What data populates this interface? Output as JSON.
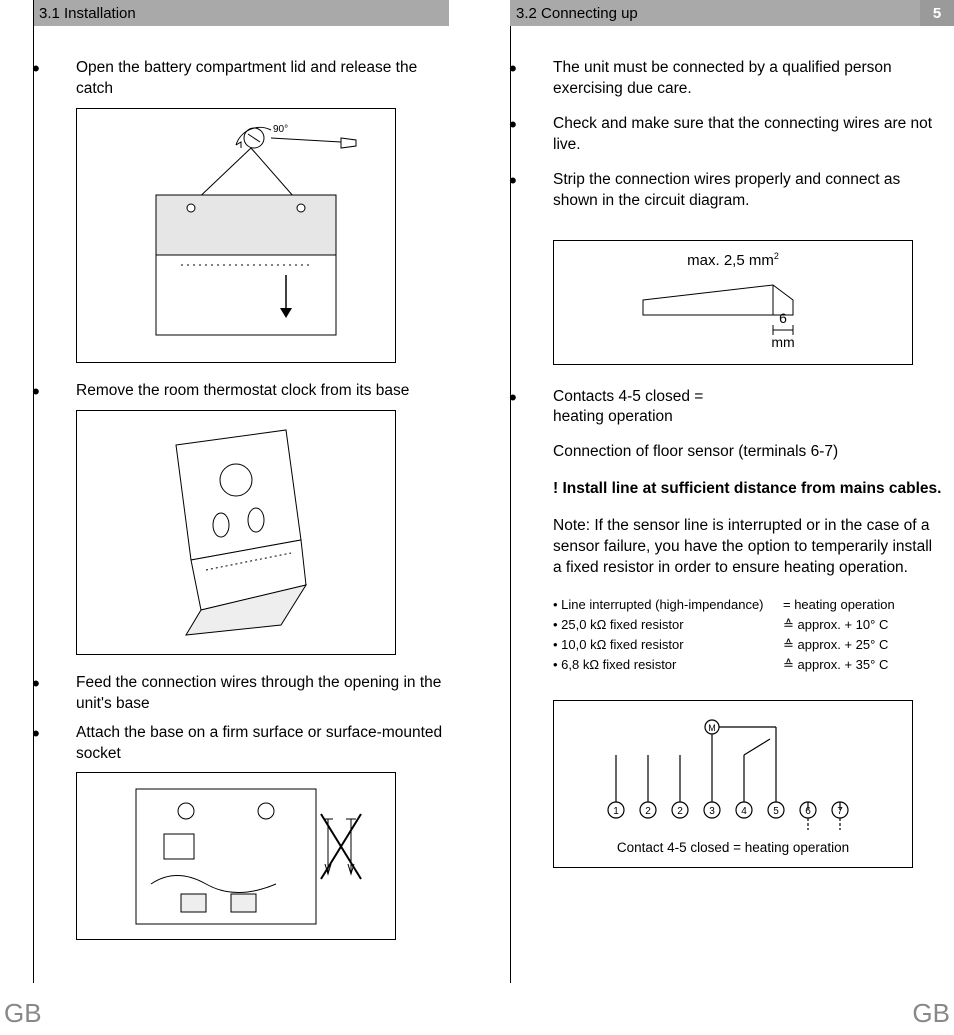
{
  "font_family": "Arial, Helvetica, sans-serif",
  "body_text_color": "#000000",
  "body_bg": "#ffffff",
  "header_bg": "#a9a9a9",
  "page_num_bg": "#9a9a9a",
  "page_num_color": "#ffffff",
  "footer_color": "#888888",
  "body_fontsize": 15.5,
  "header_fontsize": 15,
  "resistor_fontsize": 13,
  "footer_fontsize": 26,
  "left": {
    "header": "3.1 Installation",
    "step1": "Open the battery compartment lid and release the catch",
    "step2": "Remove the room thermostat clock from its base",
    "step3": "Feed the connection wires through the opening in the unit's base",
    "step4": "Attach the base on a firm surface or surface-mounted socket",
    "fig1_angle": "90°"
  },
  "right": {
    "header": "3.2 Connecting up",
    "page_num": "5",
    "p1": "The unit must be connected by a qualified person exercising due care.",
    "p2": "Check and make sure that the connecting wires are not live.",
    "p3": "Strip the connection wires properly and connect as shown in the circuit diagram.",
    "wire_max": "max. 2,5 mm",
    "wire_max_sup": "2",
    "wire_len": "6",
    "wire_unit": "mm",
    "p4a": "Contacts 4-5 closed =",
    "p4b": "heating operation",
    "p5": "Connection of floor sensor (terminals 6-7)",
    "p6": "! Install line at sufficient distance from mains cables.",
    "p7": "Note: If the sensor line is interrupted or in the case of a sensor failure, you have the option to temperarily install a fixed resistor in order to ensure heating operation.",
    "resistors": [
      {
        "label": "• Line interrupted (high-impendance)",
        "val": "= heating operation"
      },
      {
        "label": "• 25,0 kΩ fixed resistor",
        "val": "≙  approx. + 10° C"
      },
      {
        "label": "• 10,0 kΩ fixed resistor",
        "val": "≙  approx. + 25° C"
      },
      {
        "label": "• 6,8 kΩ fixed resistor",
        "val": "≙  approx. + 35° C"
      }
    ],
    "circuit_caption": "Contact 4-5 closed = heating operation",
    "terminals": [
      "1",
      "2",
      "2",
      "3",
      "4",
      "5",
      "6",
      "7"
    ]
  },
  "footer": "GB"
}
